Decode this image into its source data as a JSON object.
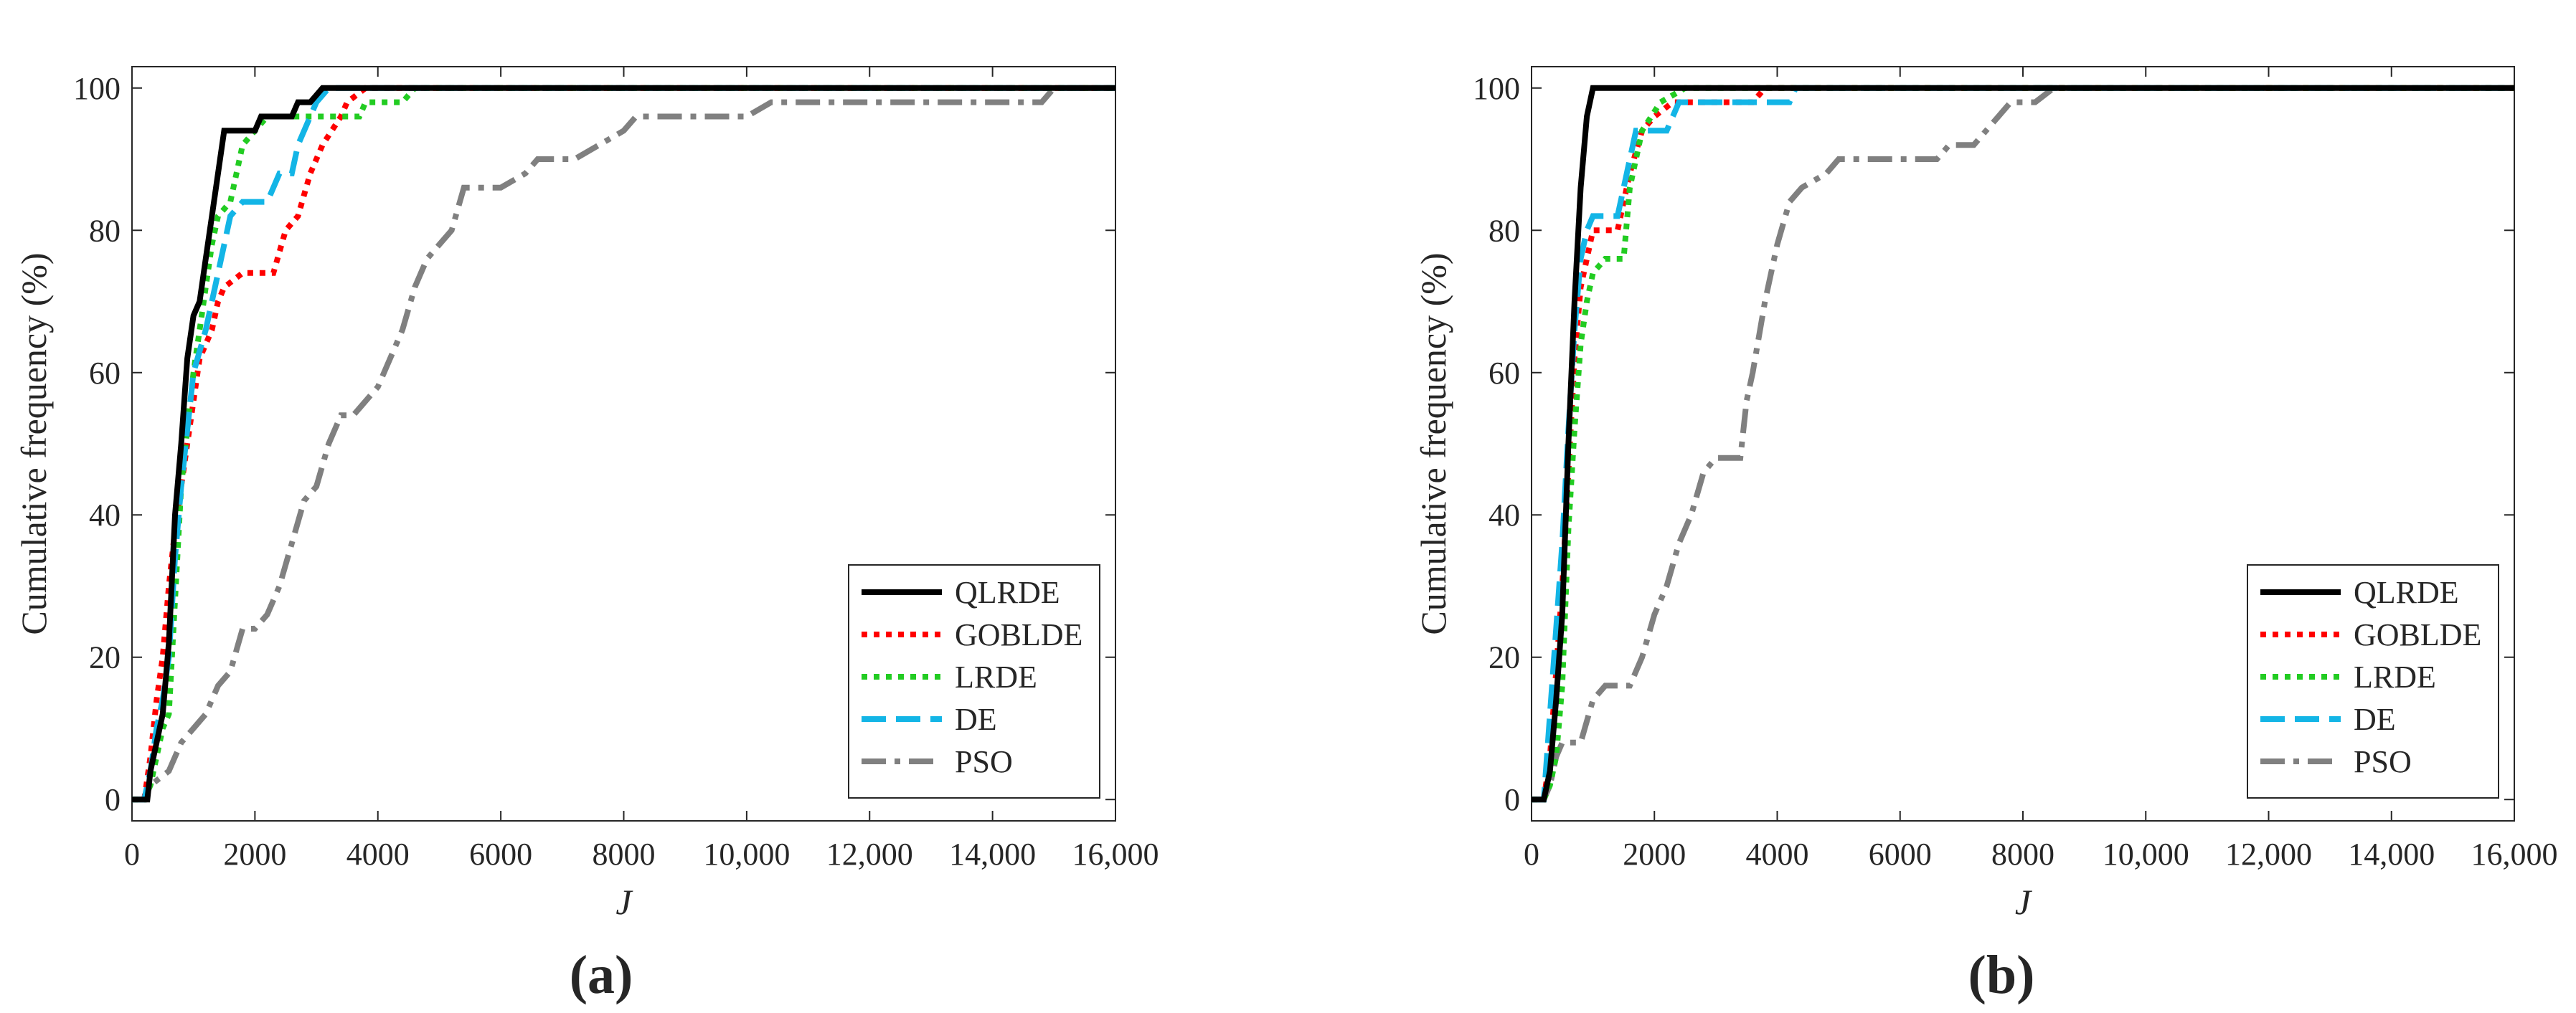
{
  "colors": {
    "QLRDE": "#000000",
    "GOBLDE": "#ff0000",
    "LRDE": "#22cc22",
    "DE": "#13b5e6",
    "PSO": "#808080",
    "axis": "#262626"
  },
  "chart_data": [
    {
      "type": "line",
      "subtitle": "(a)",
      "xlabel": "J",
      "ylabel": "Cumulative frequency (%)",
      "xlim": [
        0,
        16000
      ],
      "ylim": [
        -3,
        103
      ],
      "x_ticks": [
        0,
        2000,
        4000,
        6000,
        8000,
        10000,
        12000,
        14000,
        16000
      ],
      "x_tick_labels": [
        "0",
        "2000",
        "4000",
        "6000",
        "8000",
        "10,000",
        "12,000",
        "14,000",
        "16,000"
      ],
      "y_ticks": [
        0,
        20,
        40,
        60,
        80,
        100
      ],
      "y_tick_labels": [
        "0",
        "20",
        "40",
        "60",
        "80",
        "100"
      ],
      "grid": false,
      "legend_position": "bottom-right",
      "series": [
        {
          "name": "QLRDE",
          "style": "solid",
          "points": [
            [
              0,
              0
            ],
            [
              250,
              0
            ],
            [
              300,
              4
            ],
            [
              400,
              8
            ],
            [
              500,
              12
            ],
            [
              600,
              22
            ],
            [
              700,
              40
            ],
            [
              800,
              50
            ],
            [
              900,
              62
            ],
            [
              1000,
              68
            ],
            [
              1100,
              70
            ],
            [
              1200,
              76
            ],
            [
              1300,
              82
            ],
            [
              1500,
              94
            ],
            [
              1800,
              94
            ],
            [
              2000,
              94
            ],
            [
              2100,
              96
            ],
            [
              2600,
              96
            ],
            [
              2700,
              98
            ],
            [
              2900,
              98
            ],
            [
              3100,
              100
            ],
            [
              16000,
              100
            ]
          ]
        },
        {
          "name": "GOBLDE",
          "style": "dotted",
          "points": [
            [
              0,
              0
            ],
            [
              200,
              0
            ],
            [
              300,
              6
            ],
            [
              400,
              14
            ],
            [
              500,
              20
            ],
            [
              600,
              30
            ],
            [
              700,
              38
            ],
            [
              800,
              44
            ],
            [
              900,
              50
            ],
            [
              1000,
              56
            ],
            [
              1100,
              62
            ],
            [
              1300,
              66
            ],
            [
              1400,
              70
            ],
            [
              1500,
              72
            ],
            [
              1800,
              74
            ],
            [
              2300,
              74
            ],
            [
              2500,
              80
            ],
            [
              2700,
              82
            ],
            [
              2900,
              88
            ],
            [
              3100,
              92
            ],
            [
              3400,
              96
            ],
            [
              3500,
              98
            ],
            [
              3800,
              100
            ],
            [
              16000,
              100
            ]
          ]
        },
        {
          "name": "LRDE",
          "style": "dotted",
          "points": [
            [
              0,
              0
            ],
            [
              200,
              0
            ],
            [
              300,
              2
            ],
            [
              400,
              6
            ],
            [
              500,
              10
            ],
            [
              600,
              12
            ],
            [
              700,
              28
            ],
            [
              800,
              44
            ],
            [
              900,
              52
            ],
            [
              1000,
              60
            ],
            [
              1100,
              66
            ],
            [
              1200,
              72
            ],
            [
              1300,
              78
            ],
            [
              1400,
              82
            ],
            [
              1600,
              84
            ],
            [
              1800,
              92
            ],
            [
              2000,
              94
            ],
            [
              2200,
              96
            ],
            [
              3200,
              96
            ],
            [
              3700,
              96
            ],
            [
              3800,
              98
            ],
            [
              4400,
              98
            ],
            [
              4600,
              100
            ],
            [
              16000,
              100
            ]
          ]
        },
        {
          "name": "DE",
          "style": "dashed",
          "points": [
            [
              0,
              0
            ],
            [
              200,
              0
            ],
            [
              300,
              4
            ],
            [
              400,
              10
            ],
            [
              500,
              14
            ],
            [
              600,
              20
            ],
            [
              700,
              34
            ],
            [
              800,
              44
            ],
            [
              900,
              52
            ],
            [
              1000,
              60
            ],
            [
              1200,
              66
            ],
            [
              1400,
              74
            ],
            [
              1600,
              82
            ],
            [
              1800,
              84
            ],
            [
              2200,
              84
            ],
            [
              2300,
              86
            ],
            [
              2400,
              88
            ],
            [
              2600,
              88
            ],
            [
              2700,
              92
            ],
            [
              2900,
              96
            ],
            [
              3000,
              98
            ],
            [
              3200,
              100
            ],
            [
              16000,
              100
            ]
          ]
        },
        {
          "name": "PSO",
          "style": "dashdot",
          "points": [
            [
              0,
              0
            ],
            [
              200,
              0
            ],
            [
              300,
              2
            ],
            [
              600,
              4
            ],
            [
              800,
              8
            ],
            [
              1000,
              10
            ],
            [
              1200,
              12
            ],
            [
              1400,
              16
            ],
            [
              1600,
              18
            ],
            [
              1800,
              24
            ],
            [
              2000,
              24
            ],
            [
              2200,
              26
            ],
            [
              2400,
              30
            ],
            [
              2600,
              36
            ],
            [
              2800,
              42
            ],
            [
              3000,
              44
            ],
            [
              3200,
              50
            ],
            [
              3400,
              54
            ],
            [
              3600,
              54
            ],
            [
              3800,
              56
            ],
            [
              4000,
              58
            ],
            [
              4200,
              62
            ],
            [
              4400,
              66
            ],
            [
              4600,
              72
            ],
            [
              4800,
              76
            ],
            [
              5000,
              78
            ],
            [
              5200,
              80
            ],
            [
              5400,
              86
            ],
            [
              6000,
              86
            ],
            [
              6400,
              88
            ],
            [
              6600,
              90
            ],
            [
              7200,
              90
            ],
            [
              7600,
              92
            ],
            [
              8000,
              94
            ],
            [
              8200,
              96
            ],
            [
              9000,
              96
            ],
            [
              9600,
              96
            ],
            [
              10000,
              96
            ],
            [
              10400,
              98
            ],
            [
              14800,
              98
            ],
            [
              15000,
              100
            ],
            [
              16000,
              100
            ]
          ]
        }
      ]
    },
    {
      "type": "line",
      "subtitle": "(b)",
      "xlabel": "J",
      "ylabel": "Cumulative frequency (%)",
      "xlim": [
        0,
        16000
      ],
      "ylim": [
        -3,
        103
      ],
      "x_ticks": [
        0,
        2000,
        4000,
        6000,
        8000,
        10000,
        12000,
        14000,
        16000
      ],
      "x_tick_labels": [
        "0",
        "2000",
        "4000",
        "6000",
        "8000",
        "10,000",
        "12,000",
        "14,000",
        "16,000"
      ],
      "y_ticks": [
        0,
        20,
        40,
        60,
        80,
        100
      ],
      "y_tick_labels": [
        "0",
        "20",
        "40",
        "60",
        "80",
        "100"
      ],
      "grid": false,
      "legend_position": "bottom-right",
      "series": [
        {
          "name": "QLRDE",
          "style": "solid",
          "points": [
            [
              0,
              0
            ],
            [
              200,
              0
            ],
            [
              300,
              4
            ],
            [
              400,
              14
            ],
            [
              500,
              26
            ],
            [
              600,
              50
            ],
            [
              700,
              70
            ],
            [
              800,
              86
            ],
            [
              900,
              96
            ],
            [
              1000,
              100
            ],
            [
              16000,
              100
            ]
          ]
        },
        {
          "name": "GOBLDE",
          "style": "dotted",
          "points": [
            [
              0,
              0
            ],
            [
              200,
              0
            ],
            [
              300,
              6
            ],
            [
              400,
              18
            ],
            [
              500,
              30
            ],
            [
              600,
              46
            ],
            [
              700,
              62
            ],
            [
              800,
              72
            ],
            [
              900,
              76
            ],
            [
              1000,
              80
            ],
            [
              1400,
              80
            ],
            [
              1600,
              88
            ],
            [
              1800,
              94
            ],
            [
              2000,
              96
            ],
            [
              2300,
              98
            ],
            [
              3600,
              98
            ],
            [
              3800,
              100
            ],
            [
              16000,
              100
            ]
          ]
        },
        {
          "name": "LRDE",
          "style": "dotted",
          "points": [
            [
              0,
              0
            ],
            [
              200,
              0
            ],
            [
              300,
              2
            ],
            [
              400,
              6
            ],
            [
              500,
              16
            ],
            [
              600,
              38
            ],
            [
              700,
              52
            ],
            [
              800,
              64
            ],
            [
              900,
              70
            ],
            [
              1000,
              74
            ],
            [
              1200,
              76
            ],
            [
              1500,
              76
            ],
            [
              1600,
              86
            ],
            [
              1800,
              94
            ],
            [
              2100,
              98
            ],
            [
              2500,
              100
            ],
            [
              16000,
              100
            ]
          ]
        },
        {
          "name": "DE",
          "style": "dashed",
          "points": [
            [
              0,
              0
            ],
            [
              200,
              0
            ],
            [
              300,
              12
            ],
            [
              400,
              24
            ],
            [
              500,
              36
            ],
            [
              600,
              52
            ],
            [
              700,
              66
            ],
            [
              800,
              76
            ],
            [
              900,
              80
            ],
            [
              1000,
              82
            ],
            [
              1400,
              82
            ],
            [
              1700,
              94
            ],
            [
              2200,
              94
            ],
            [
              2400,
              98
            ],
            [
              3000,
              98
            ],
            [
              4200,
              98
            ],
            [
              4300,
              100
            ],
            [
              16000,
              100
            ]
          ]
        },
        {
          "name": "PSO",
          "style": "dashdot",
          "points": [
            [
              0,
              0
            ],
            [
              200,
              0
            ],
            [
              300,
              2
            ],
            [
              400,
              6
            ],
            [
              500,
              8
            ],
            [
              800,
              8
            ],
            [
              1000,
              14
            ],
            [
              1200,
              16
            ],
            [
              1600,
              16
            ],
            [
              1800,
              20
            ],
            [
              2000,
              26
            ],
            [
              2200,
              30
            ],
            [
              2400,
              36
            ],
            [
              2600,
              40
            ],
            [
              2800,
              46
            ],
            [
              3000,
              48
            ],
            [
              3400,
              48
            ],
            [
              3500,
              56
            ],
            [
              3600,
              60
            ],
            [
              3800,
              70
            ],
            [
              4000,
              78
            ],
            [
              4200,
              84
            ],
            [
              4400,
              86
            ],
            [
              4800,
              88
            ],
            [
              5000,
              90
            ],
            [
              6000,
              90
            ],
            [
              6600,
              90
            ],
            [
              6800,
              92
            ],
            [
              7200,
              92
            ],
            [
              7400,
              94
            ],
            [
              7600,
              96
            ],
            [
              7800,
              98
            ],
            [
              8200,
              98
            ],
            [
              8500,
              100
            ],
            [
              16000,
              100
            ]
          ]
        }
      ]
    }
  ]
}
